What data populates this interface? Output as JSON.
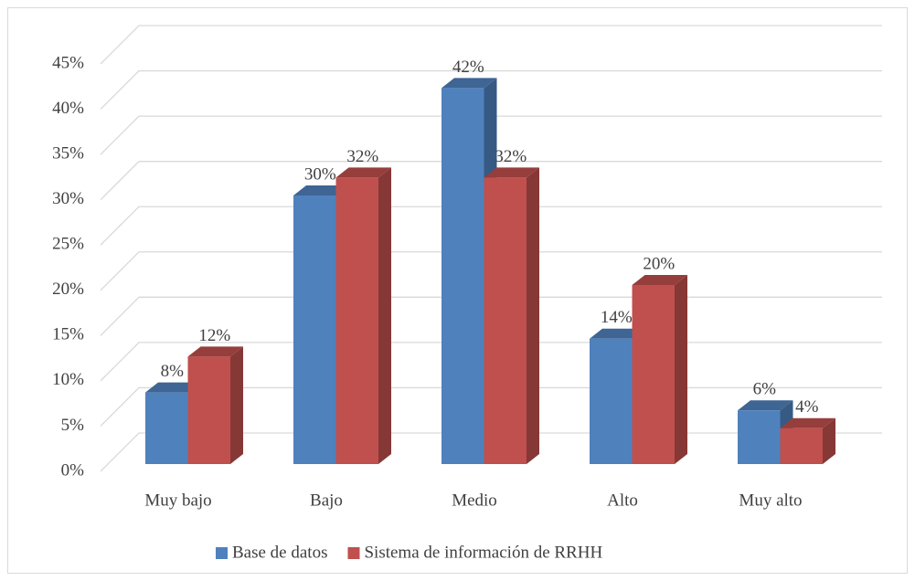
{
  "chart_data": {
    "type": "bar3d",
    "categories": [
      "Muy bajo",
      "Bajo",
      "Medio",
      "Alto",
      "Muy alto"
    ],
    "series": [
      {
        "name": "Base de datos",
        "color": "#4f81bd",
        "values": [
          8,
          30,
          42,
          14,
          6
        ],
        "value_labels": [
          "8%",
          "30%",
          "42%",
          "14%",
          "6%"
        ]
      },
      {
        "name": "Sistema de información de RRHH",
        "color": "#c0504d",
        "values": [
          12,
          32,
          32,
          20,
          4
        ],
        "value_labels": [
          "12%",
          "32%",
          "32%",
          "20%",
          "4%"
        ]
      }
    ],
    "ylim": [
      0,
      45
    ],
    "yticks": [
      {
        "value": 0,
        "label": "0%"
      },
      {
        "value": 5,
        "label": "5%"
      },
      {
        "value": 10,
        "label": "10%"
      },
      {
        "value": 15,
        "label": "15%"
      },
      {
        "value": 20,
        "label": "20%"
      },
      {
        "value": 25,
        "label": "25%"
      },
      {
        "value": 30,
        "label": "30%"
      },
      {
        "value": 35,
        "label": "35%"
      },
      {
        "value": 40,
        "label": "40%"
      },
      {
        "value": 45,
        "label": "45%"
      }
    ],
    "grid": true,
    "legend": "bottom"
  }
}
